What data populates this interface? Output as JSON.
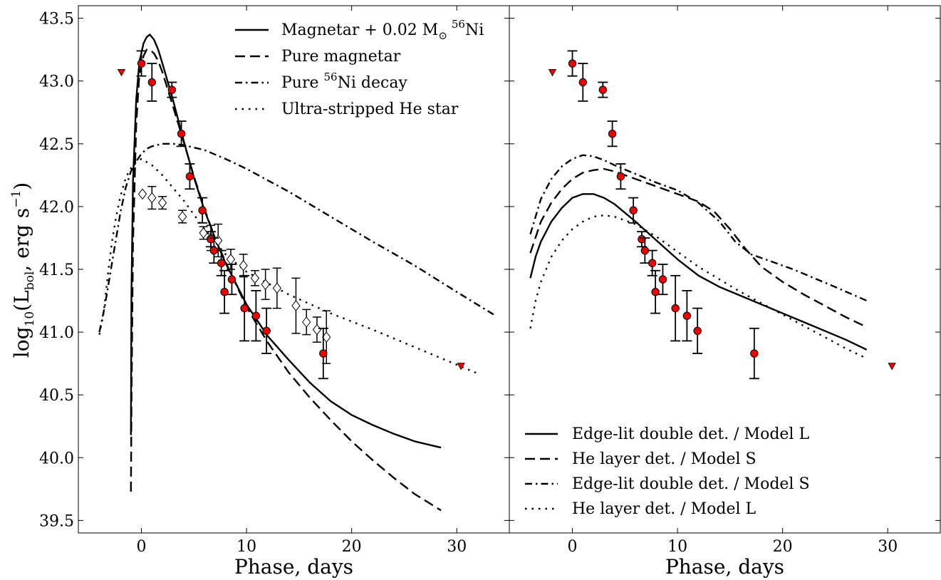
{
  "ylabel_main": "log",
  "ylabel_sub": "10",
  "ylabel_rest_1": "(L",
  "ylabel_bol": "bol",
  "ylabel_rest_2": ", erg s",
  "ylabel_exp": "−1",
  "ylabel_close": ")",
  "chart_data": [
    {
      "type": "line",
      "xlabel": "Phase, days",
      "ylabel": "log10(Lbol, erg s−1)",
      "xlim": [
        -6,
        35
      ],
      "ylim": [
        39.4,
        43.6
      ],
      "xticks": [
        "0",
        "10",
        "20",
        "30"
      ],
      "yticks": [
        "39.5",
        "40.0",
        "40.5",
        "41.0",
        "41.5",
        "42.0",
        "42.5",
        "43.0",
        "43.5"
      ],
      "legend_position": "upper-right",
      "legend": [
        {
          "prefix": "Magnetar + 0.02 M",
          "sun": "⊙",
          "sup": "56",
          "suffix": "Ni",
          "dash": "solid"
        },
        {
          "prefix": "Pure magnetar",
          "sun": "",
          "sup": "",
          "suffix": "",
          "dash": "dashed"
        },
        {
          "prefix": "Pure ",
          "sun": "",
          "sup": "56",
          "suffix": "Ni decay",
          "dash": "dashdot"
        },
        {
          "prefix": "Ultra-stripped He star",
          "sun": "",
          "sup": "",
          "suffix": "",
          "dash": "dotted"
        }
      ],
      "series": [
        {
          "dash": "solid",
          "x": [
            -1.0,
            -0.95,
            -0.8,
            -0.5,
            -0.2,
            0.2,
            0.5,
            0.8,
            1.2,
            1.6,
            2.0,
            3.0,
            4.0,
            5.0,
            6.0,
            7.0,
            8.0,
            10.0,
            12.0,
            14.0,
            16.0,
            18.0,
            20.0,
            22.0,
            24.0,
            26.0,
            28.5
          ],
          "y": [
            40.18,
            41.3,
            42.2,
            42.85,
            43.15,
            43.3,
            43.35,
            43.37,
            43.33,
            43.25,
            43.14,
            42.85,
            42.53,
            42.23,
            41.97,
            41.75,
            41.55,
            41.22,
            40.97,
            40.78,
            40.6,
            40.45,
            40.34,
            40.26,
            40.19,
            40.13,
            40.08
          ]
        },
        {
          "dash": "dashed",
          "x": [
            -1.0,
            -0.95,
            -0.8,
            -0.5,
            -0.2,
            0.2,
            0.5,
            0.8,
            1.2,
            1.6,
            2.0,
            3.0,
            4.0,
            5.0,
            6.0,
            7.0,
            8.0,
            10.0,
            12.0,
            14.0,
            16.0,
            18.0,
            20.0,
            22.0,
            24.0,
            26.0,
            28.5
          ],
          "y": [
            39.73,
            40.4,
            41.7,
            42.65,
            43.05,
            43.2,
            43.25,
            43.25,
            43.22,
            43.16,
            43.07,
            42.8,
            42.52,
            42.24,
            41.98,
            41.75,
            41.56,
            41.2,
            40.92,
            40.68,
            40.48,
            40.3,
            40.13,
            39.98,
            39.84,
            39.71,
            39.58
          ]
        },
        {
          "dash": "dashdot",
          "x": [
            -4.0,
            -3.5,
            -3.0,
            -2.5,
            -2.0,
            -1.5,
            -1.0,
            -0.5,
            0.0,
            0.5,
            1.0,
            2.0,
            3.0,
            4.0,
            6.0,
            8.0,
            10.0,
            14.0,
            18.0,
            22.0,
            26.0,
            30.0,
            33.5
          ],
          "y": [
            41.0,
            41.2,
            41.45,
            41.7,
            41.95,
            42.15,
            42.28,
            42.36,
            42.42,
            42.46,
            42.48,
            42.5,
            42.5,
            42.49,
            42.45,
            42.38,
            42.3,
            42.12,
            41.92,
            41.72,
            41.53,
            41.32,
            41.14
          ]
        },
        {
          "dash": "dotted",
          "x": [
            -4.0,
            -3.6,
            -3.2,
            -2.8,
            -2.4,
            -2.0,
            -1.6,
            -1.2,
            -0.8,
            -0.4,
            0.0,
            1.0,
            2.0,
            4.0,
            6.0,
            8.0,
            10.0,
            14.0,
            18.0,
            22.0,
            26.0,
            30.0,
            32.0
          ],
          "y": [
            40.98,
            41.15,
            41.45,
            41.72,
            41.92,
            42.08,
            42.2,
            42.28,
            42.33,
            42.36,
            42.38,
            42.33,
            42.25,
            42.05,
            41.82,
            41.62,
            41.48,
            41.3,
            41.15,
            41.02,
            40.88,
            40.74,
            40.67
          ]
        }
      ],
      "detections": [
        {
          "x": 0.0,
          "y": 43.14,
          "err": 0.1
        },
        {
          "x": 1.0,
          "y": 42.99,
          "err": 0.15
        },
        {
          "x": 2.9,
          "y": 42.93,
          "err": 0.06
        },
        {
          "x": 3.8,
          "y": 42.58,
          "err": 0.1
        },
        {
          "x": 4.6,
          "y": 42.24,
          "err": 0.1
        },
        {
          "x": 5.8,
          "y": 41.97,
          "err": 0.1
        },
        {
          "x": 6.6,
          "y": 41.74,
          "err": 0.06
        },
        {
          "x": 6.9,
          "y": 41.65,
          "err": 0.1
        },
        {
          "x": 7.6,
          "y": 41.55,
          "err": 0.1
        },
        {
          "x": 7.9,
          "y": 41.32,
          "err": 0.17
        },
        {
          "x": 8.6,
          "y": 41.42,
          "err": 0.12
        },
        {
          "x": 9.8,
          "y": 41.19,
          "err": 0.26
        },
        {
          "x": 10.9,
          "y": 41.13,
          "err": 0.2
        },
        {
          "x": 11.9,
          "y": 41.01,
          "err": 0.18
        },
        {
          "x": 17.3,
          "y": 40.83,
          "err": 0.2
        }
      ],
      "open_points": [
        {
          "x": 0.1,
          "y": 42.1,
          "err": 0.0
        },
        {
          "x": 1.0,
          "y": 42.07,
          "err": 0.09
        },
        {
          "x": 2.0,
          "y": 42.03,
          "err": 0.05
        },
        {
          "x": 3.9,
          "y": 41.92,
          "err": 0.05
        },
        {
          "x": 5.9,
          "y": 41.79,
          "err": 0.05
        },
        {
          "x": 6.6,
          "y": 41.75,
          "err": 0.1
        },
        {
          "x": 7.3,
          "y": 41.73,
          "err": 0.13
        },
        {
          "x": 8.5,
          "y": 41.58,
          "err": 0.08
        },
        {
          "x": 9.7,
          "y": 41.53,
          "err": 0.09
        },
        {
          "x": 10.8,
          "y": 41.43,
          "err": 0.06
        },
        {
          "x": 11.8,
          "y": 41.38,
          "err": 0.12
        },
        {
          "x": 12.9,
          "y": 41.35,
          "err": 0.16
        },
        {
          "x": 14.7,
          "y": 41.21,
          "err": 0.22
        },
        {
          "x": 15.7,
          "y": 41.08,
          "err": 0.1
        },
        {
          "x": 16.7,
          "y": 41.02,
          "err": 0.1
        },
        {
          "x": 17.6,
          "y": 40.96,
          "err": 0.21
        }
      ],
      "upper_limits": [
        {
          "x": -1.9,
          "y": 43.07
        },
        {
          "x": 30.4,
          "y": 40.73
        }
      ]
    },
    {
      "type": "line",
      "xlabel": "Phase, days",
      "ylabel": "",
      "xlim": [
        -6,
        35
      ],
      "ylim": [
        39.4,
        43.6
      ],
      "xticks": [
        "0",
        "10",
        "20",
        "30"
      ],
      "yticks": [],
      "legend_position": "lower-left",
      "legend": [
        {
          "prefix": "Edge-lit double det. / Model L",
          "sun": "",
          "sup": "",
          "suffix": "",
          "dash": "solid"
        },
        {
          "prefix": "He layer det. / Model S",
          "sun": "",
          "sup": "",
          "suffix": "",
          "dash": "dashed"
        },
        {
          "prefix": "Edge-lit double det. / Model S",
          "sun": "",
          "sup": "",
          "suffix": "",
          "dash": "dashdot"
        },
        {
          "prefix": "He layer det. / Model L",
          "sun": "",
          "sup": "",
          "suffix": "",
          "dash": "dotted"
        }
      ],
      "series": [
        {
          "dash": "solid",
          "x": [
            -4.0,
            -3.5,
            -3.0,
            -2.0,
            -1.0,
            0.0,
            1.0,
            2.0,
            3.0,
            4.0,
            6.0,
            8.0,
            10.0,
            12.0,
            14.0,
            16.0,
            18.0,
            20.0,
            22.0,
            24.0,
            26.0,
            28.0
          ],
          "y": [
            41.43,
            41.6,
            41.72,
            41.88,
            41.99,
            42.07,
            42.1,
            42.1,
            42.07,
            42.02,
            41.88,
            41.73,
            41.58,
            41.45,
            41.36,
            41.29,
            41.22,
            41.15,
            41.08,
            41.01,
            40.94,
            40.86
          ]
        },
        {
          "dash": "dashed",
          "x": [
            -4.0,
            -3.0,
            -2.0,
            -1.0,
            0.0,
            1.0,
            2.0,
            3.0,
            4.0,
            6.0,
            8.0,
            10.0,
            12.0,
            13.5,
            15.0,
            16.5,
            18.0,
            20.0,
            22.0,
            24.0,
            26.0,
            28.0
          ],
          "y": [
            41.63,
            41.88,
            42.03,
            42.14,
            42.22,
            42.27,
            42.29,
            42.3,
            42.28,
            42.22,
            42.16,
            42.1,
            42.04,
            41.96,
            41.82,
            41.66,
            41.52,
            41.4,
            41.3,
            41.21,
            41.12,
            41.04
          ]
        },
        {
          "dash": "dashdot",
          "x": [
            -4.0,
            -3.0,
            -2.0,
            -1.0,
            0.0,
            1.0,
            2.0,
            3.0,
            4.0,
            6.0,
            8.0,
            10.0,
            12.0,
            14.0,
            15.5,
            17.0,
            19.0,
            21.0,
            23.0,
            25.0,
            28.0
          ],
          "y": [
            41.78,
            42.06,
            42.22,
            42.32,
            42.38,
            42.41,
            42.4,
            42.37,
            42.33,
            42.26,
            42.19,
            42.13,
            42.03,
            41.88,
            41.72,
            41.62,
            41.56,
            41.5,
            41.43,
            41.36,
            41.25
          ]
        },
        {
          "dash": "dotted",
          "x": [
            -4.0,
            -3.5,
            -3.0,
            -2.0,
            -1.0,
            0.0,
            1.0,
            2.0,
            3.0,
            4.0,
            6.0,
            8.0,
            10.0,
            12.0,
            14.0,
            16.0,
            18.0,
            20.0,
            22.0,
            24.0,
            26.0,
            28.0
          ],
          "y": [
            41.03,
            41.25,
            41.4,
            41.6,
            41.73,
            41.82,
            41.88,
            41.92,
            41.93,
            41.92,
            41.86,
            41.76,
            41.64,
            41.52,
            41.42,
            41.32,
            41.23,
            41.14,
            41.05,
            40.96,
            40.87,
            40.79
          ]
        }
      ],
      "detections": [
        {
          "x": 0.0,
          "y": 43.14,
          "err": 0.1
        },
        {
          "x": 1.0,
          "y": 42.99,
          "err": 0.15
        },
        {
          "x": 2.9,
          "y": 42.93,
          "err": 0.06
        },
        {
          "x": 3.8,
          "y": 42.58,
          "err": 0.1
        },
        {
          "x": 4.6,
          "y": 42.24,
          "err": 0.1
        },
        {
          "x": 5.8,
          "y": 41.97,
          "err": 0.1
        },
        {
          "x": 6.6,
          "y": 41.74,
          "err": 0.06
        },
        {
          "x": 6.9,
          "y": 41.65,
          "err": 0.1
        },
        {
          "x": 7.6,
          "y": 41.55,
          "err": 0.1
        },
        {
          "x": 7.9,
          "y": 41.32,
          "err": 0.17
        },
        {
          "x": 8.6,
          "y": 41.42,
          "err": 0.12
        },
        {
          "x": 9.8,
          "y": 41.19,
          "err": 0.26
        },
        {
          "x": 10.9,
          "y": 41.13,
          "err": 0.2
        },
        {
          "x": 11.9,
          "y": 41.01,
          "err": 0.18
        },
        {
          "x": 17.3,
          "y": 40.83,
          "err": 0.2
        }
      ],
      "open_points": [],
      "upper_limits": [
        {
          "x": -1.9,
          "y": 43.07
        },
        {
          "x": 30.4,
          "y": 40.73
        }
      ]
    }
  ]
}
